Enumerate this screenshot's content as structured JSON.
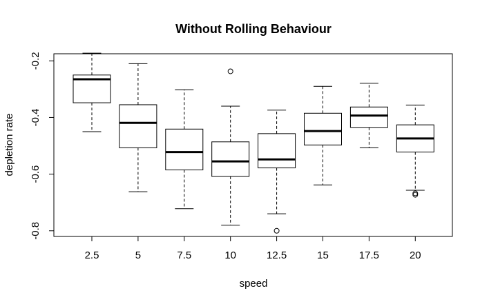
{
  "chart_data": {
    "type": "boxplot",
    "title": "Without Rolling Behaviour",
    "xlabel": "speed",
    "ylabel": "depletion rate",
    "ylim": [
      -0.82,
      -0.175
    ],
    "y_ticks": [
      -0.2,
      -0.4,
      -0.6,
      -0.8
    ],
    "y_tick_labels": [
      "-0.2",
      "-0.4",
      "-0.6",
      "-0.8"
    ],
    "grid": false,
    "categories": [
      "2.5",
      "5",
      "7.5",
      "10",
      "12.5",
      "15",
      "17.5",
      "20"
    ],
    "boxes": [
      {
        "category": "2.5",
        "whisker_low": -0.45,
        "q1": -0.348,
        "median": -0.265,
        "q3": -0.25,
        "whisker_high": -0.173,
        "outliers": []
      },
      {
        "category": "5",
        "whisker_low": -0.662,
        "q1": -0.507,
        "median": -0.419,
        "q3": -0.355,
        "whisker_high": -0.21,
        "outliers": []
      },
      {
        "category": "7.5",
        "whisker_low": -0.722,
        "q1": -0.585,
        "median": -0.522,
        "q3": -0.441,
        "whisker_high": -0.302,
        "outliers": []
      },
      {
        "category": "10",
        "whisker_low": -0.78,
        "q1": -0.608,
        "median": -0.555,
        "q3": -0.486,
        "whisker_high": -0.36,
        "outliers": [
          -0.237
        ]
      },
      {
        "category": "12.5",
        "whisker_low": -0.74,
        "q1": -0.578,
        "median": -0.548,
        "q3": -0.457,
        "whisker_high": -0.374,
        "outliers": [
          -0.8
        ]
      },
      {
        "category": "15",
        "whisker_low": -0.638,
        "q1": -0.497,
        "median": -0.448,
        "q3": -0.385,
        "whisker_high": -0.29,
        "outliers": []
      },
      {
        "category": "17.5",
        "whisker_low": -0.507,
        "q1": -0.435,
        "median": -0.393,
        "q3": -0.363,
        "whisker_high": -0.279,
        "outliers": []
      },
      {
        "category": "20",
        "whisker_low": -0.657,
        "q1": -0.522,
        "median": -0.474,
        "q3": -0.426,
        "whisker_high": -0.356,
        "outliers": [
          -0.668,
          -0.673
        ]
      }
    ]
  }
}
